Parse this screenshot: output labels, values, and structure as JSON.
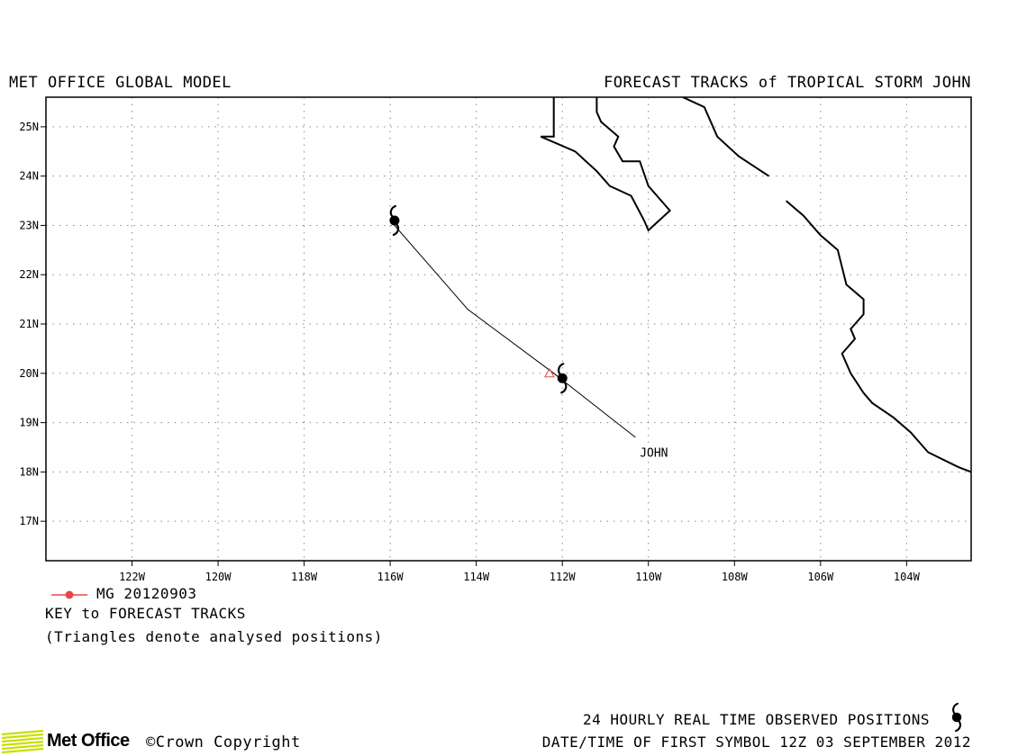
{
  "header": {
    "left_title": "MET OFFICE GLOBAL MODEL",
    "right_title": "FORECAST TRACKS of TROPICAL STORM JOHN"
  },
  "map": {
    "lon_range": [
      -124,
      -102.5
    ],
    "lat_range": [
      16.2,
      25.6
    ],
    "lon_ticks": [
      {
        "value": -122,
        "label": "122W"
      },
      {
        "value": -120,
        "label": "120W"
      },
      {
        "value": -118,
        "label": "118W"
      },
      {
        "value": -116,
        "label": "116W"
      },
      {
        "value": -114,
        "label": "114W"
      },
      {
        "value": -112,
        "label": "112W"
      },
      {
        "value": -110,
        "label": "110W"
      },
      {
        "value": -108,
        "label": "108W"
      },
      {
        "value": -106,
        "label": "106W"
      },
      {
        "value": -104,
        "label": "104W"
      }
    ],
    "lat_ticks": [
      {
        "value": 17,
        "label": "17N"
      },
      {
        "value": 18,
        "label": "18N"
      },
      {
        "value": 19,
        "label": "19N"
      },
      {
        "value": 20,
        "label": "20N"
      },
      {
        "value": 21,
        "label": "21N"
      },
      {
        "value": 22,
        "label": "22N"
      },
      {
        "value": 23,
        "label": "23N"
      },
      {
        "value": 24,
        "label": "24N"
      },
      {
        "value": 25,
        "label": "25N"
      }
    ],
    "grid": "dotted",
    "coastlines": [
      [
        [
          -112.2,
          25.6
        ],
        [
          -112.2,
          24.8
        ],
        [
          -112.5,
          24.8
        ],
        [
          -111.7,
          24.5
        ],
        [
          -111.2,
          24.1
        ],
        [
          -110.9,
          23.8
        ],
        [
          -110.4,
          23.6
        ],
        [
          -110.1,
          23.1
        ],
        [
          -110.0,
          22.9
        ],
        [
          -109.5,
          23.3
        ],
        [
          -110.0,
          23.8
        ],
        [
          -110.2,
          24.3
        ],
        [
          -110.6,
          24.3
        ],
        [
          -110.8,
          24.6
        ],
        [
          -110.7,
          24.8
        ],
        [
          -111.1,
          25.1
        ],
        [
          -111.2,
          25.3
        ],
        [
          -111.2,
          25.6
        ]
      ],
      [
        [
          -109.2,
          25.6
        ],
        [
          -108.7,
          25.4
        ],
        [
          -108.4,
          24.8
        ],
        [
          -107.9,
          24.4
        ],
        [
          -107.2,
          24.0
        ]
      ],
      [
        [
          -106.8,
          23.5
        ],
        [
          -106.4,
          23.2
        ],
        [
          -106.0,
          22.8
        ],
        [
          -105.6,
          22.5
        ],
        [
          -105.4,
          21.8
        ],
        [
          -105.0,
          21.5
        ],
        [
          -105.0,
          21.2
        ],
        [
          -105.3,
          20.9
        ],
        [
          -105.2,
          20.7
        ],
        [
          -105.5,
          20.4
        ],
        [
          -105.3,
          20.0
        ],
        [
          -105.0,
          19.6
        ],
        [
          -104.8,
          19.4
        ],
        [
          -104.3,
          19.1
        ],
        [
          -103.9,
          18.8
        ],
        [
          -103.5,
          18.4
        ],
        [
          -102.8,
          18.1
        ],
        [
          -102.5,
          18.0
        ]
      ]
    ],
    "tracks": [
      {
        "name": "JOHN",
        "points": [
          [
            -110.3,
            18.7
          ],
          [
            -112.2,
            20.0
          ],
          [
            -114.2,
            21.3
          ],
          [
            -115.9,
            23.0
          ]
        ],
        "label_position": [
          -110.2,
          18.4
        ]
      }
    ],
    "storm_symbols": [
      [
        -115.9,
        23.1
      ],
      [
        -112.0,
        19.9
      ]
    ],
    "analysed_triangles": [
      [
        -112.3,
        20.0
      ]
    ],
    "track_color": "#000000",
    "triangle_color": "#e8474a"
  },
  "legend": {
    "line_color": "#e8474a",
    "label": "MG 20120903",
    "title": "KEY to FORECAST TRACKS",
    "note": "(Triangles denote analysed positions)"
  },
  "footer": {
    "observed_note": "24 HOURLY REAL TIME OBSERVED POSITIONS",
    "datetime_note": "DATE/TIME OF FIRST SYMBOL 12Z 03 SEPTEMBER 2012",
    "logo_text": "Met Office",
    "copyright": "©Crown Copyright",
    "logo_color": "#c8e000"
  }
}
